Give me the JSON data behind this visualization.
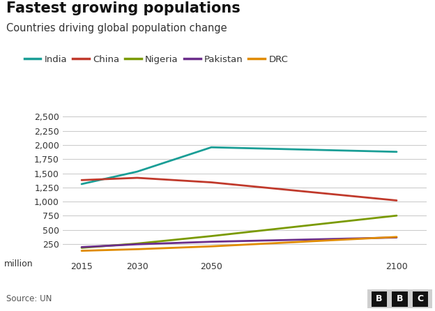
{
  "title": "Fastest growing populations",
  "subtitle": "Countries driving global population change",
  "ylabel": "million",
  "source": "Source: UN",
  "x": [
    2015,
    2030,
    2050,
    2100
  ],
  "series": [
    {
      "name": "India",
      "color": "#1a9e96",
      "values": [
        1310,
        1530,
        1960,
        1880
      ]
    },
    {
      "name": "China",
      "color": "#c0392b",
      "values": [
        1380,
        1420,
        1340,
        1020
      ]
    },
    {
      "name": "Nigeria",
      "color": "#7a9a01",
      "values": [
        182,
        258,
        390,
        752
      ]
    },
    {
      "name": "Pakistan",
      "color": "#6b2d8b",
      "values": [
        195,
        245,
        290,
        365
      ]
    },
    {
      "name": "DRC",
      "color": "#e08b00",
      "values": [
        130,
        158,
        208,
        375
      ]
    }
  ],
  "ylim": [
    0,
    2750
  ],
  "yticks": [
    250,
    500,
    750,
    1000,
    1250,
    1500,
    1750,
    2000,
    2250,
    2500
  ],
  "xticks": [
    2015,
    2030,
    2050,
    2100
  ],
  "background_color": "#ffffff",
  "grid_color": "#cccccc",
  "title_fontsize": 15,
  "subtitle_fontsize": 10.5,
  "legend_fontsize": 9.5,
  "tick_fontsize": 9,
  "bbc_logo_text": "B B C",
  "line_width": 2.0
}
